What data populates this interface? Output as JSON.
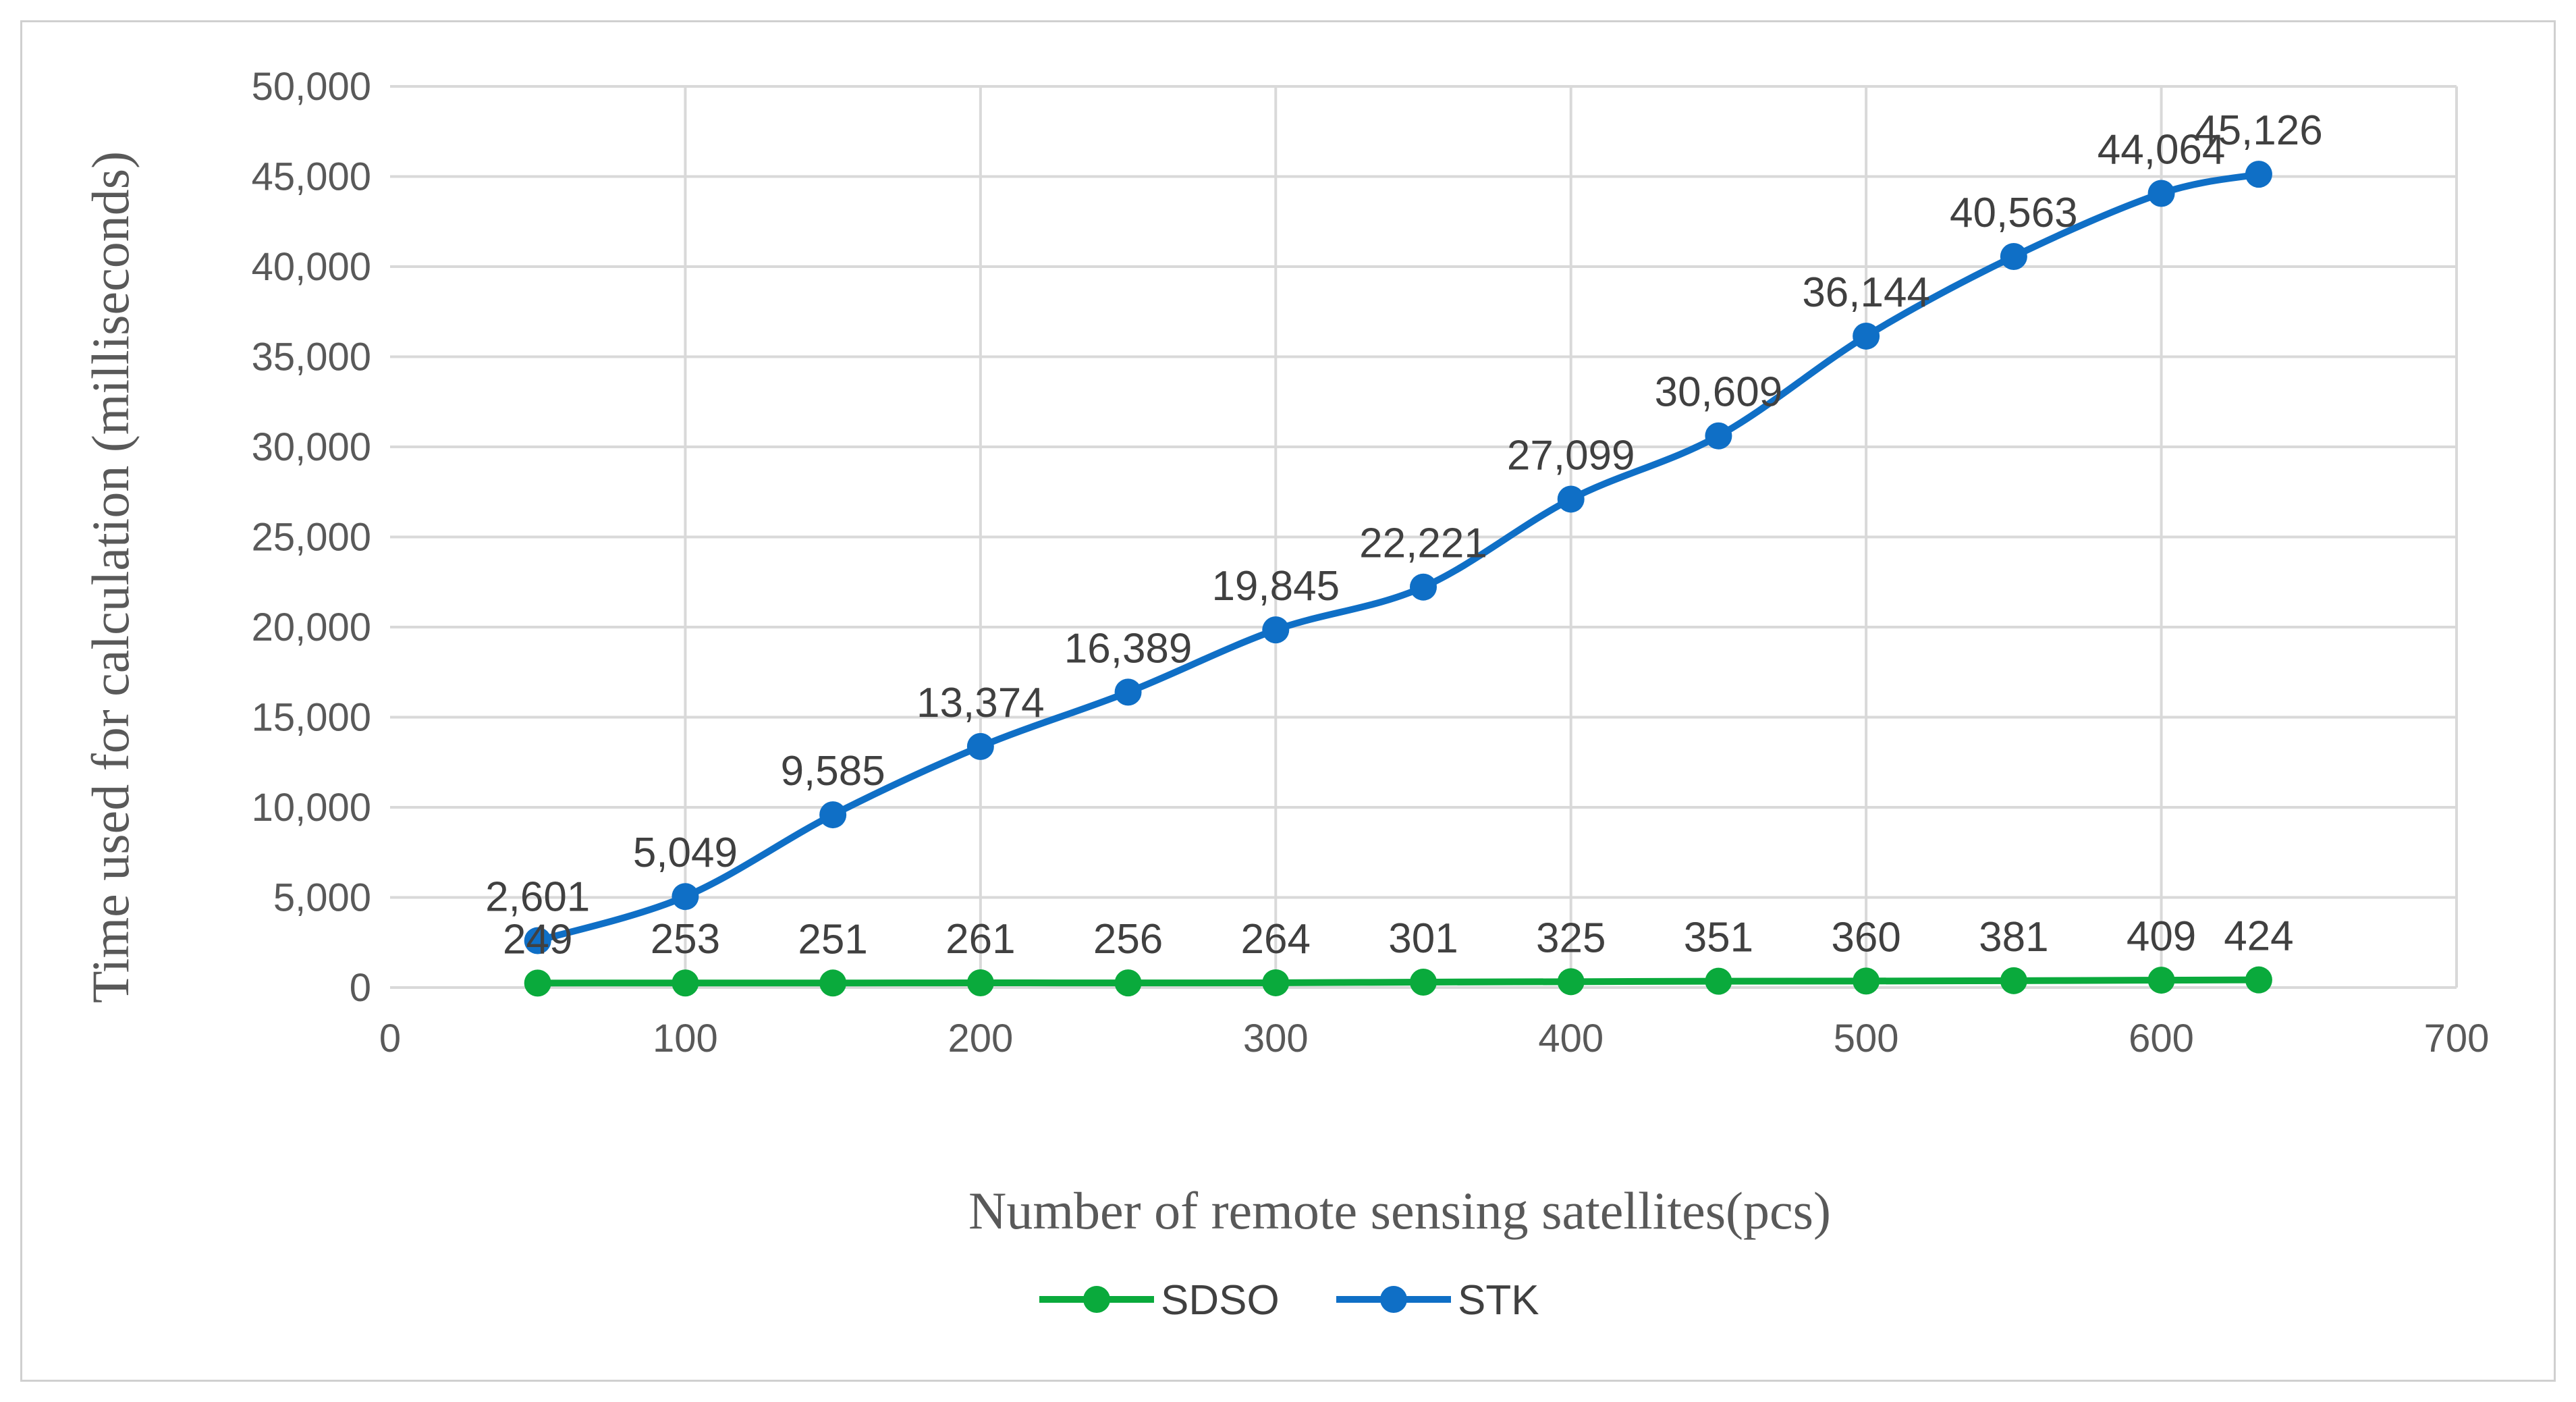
{
  "chart_data": {
    "type": "line",
    "title": "",
    "xlabel": "Number of remote sensing satellites(pcs)",
    "ylabel": "Time used for calculation (milliseconds)",
    "xlim": [
      0,
      700
    ],
    "ylim": [
      0,
      50000
    ],
    "x_ticks": [
      0,
      100,
      200,
      300,
      400,
      500,
      600,
      700
    ],
    "y_ticks": [
      0,
      5000,
      10000,
      15000,
      20000,
      25000,
      30000,
      35000,
      40000,
      45000,
      50000
    ],
    "y_tick_labels": [
      "0",
      "5,000",
      "10,000",
      "15,000",
      "20,000",
      "25,000",
      "30,000",
      "35,000",
      "40,000",
      "45,000",
      "50,000"
    ],
    "grid": true,
    "smooth": true,
    "legend_position": "bottom",
    "x": [
      50,
      100,
      150,
      200,
      250,
      300,
      350,
      400,
      450,
      500,
      550,
      600,
      633
    ],
    "series": [
      {
        "name": "SDSO",
        "color": "#0aaa3c",
        "values": [
          249,
          253,
          251,
          261,
          256,
          264,
          301,
          325,
          351,
          360,
          381,
          409,
          424
        ],
        "labels": [
          "249",
          "253",
          "251",
          "261",
          "256",
          "264",
          "301",
          "325",
          "351",
          "360",
          "381",
          "409",
          "424"
        ]
      },
      {
        "name": "STK",
        "color": "#0f6fc6",
        "values": [
          2601,
          5049,
          9585,
          13374,
          16389,
          19845,
          22221,
          27099,
          30609,
          36144,
          40563,
          44064,
          45126
        ],
        "labels": [
          "2,601",
          "5,049",
          "9,585",
          "13,374",
          "16,389",
          "19,845",
          "22,221",
          "27,099",
          "30,609",
          "36,144",
          "40,563",
          "44,064",
          "45,126"
        ]
      }
    ]
  }
}
